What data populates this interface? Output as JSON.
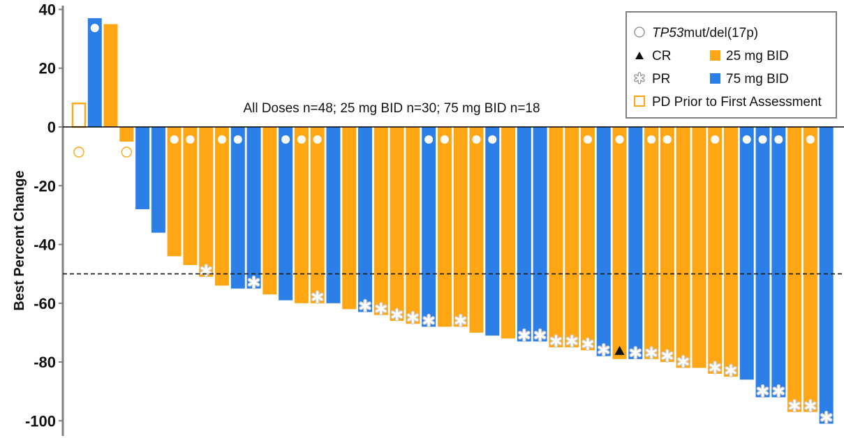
{
  "chart_data": {
    "type": "bar",
    "ylabel": "Best Percent Change",
    "ylim": [
      -102,
      43
    ],
    "yticks": [
      40,
      20,
      0,
      -20,
      -40,
      -60,
      -80,
      -100
    ],
    "ytick_labels": [
      "40",
      "20",
      "0",
      "-20",
      "-40",
      "-60",
      "-80",
      "-100"
    ],
    "threshold": -50,
    "annotation": "All Doses n=48; 25 mg BID n=30; 75 mg BID n=18",
    "colors": {
      "25mg": "#FFA614",
      "75mg": "#2B7FE6",
      "pd": "#FFA614",
      "axis": "#7f7f7f"
    },
    "legend": {
      "position": "top-right",
      "items": [
        {
          "key": "tp53",
          "label_italic": "TP53",
          "label": "mut/del(17p)"
        },
        {
          "key": "cr",
          "label": "CR"
        },
        {
          "key": "25mg",
          "label": "25 mg BID"
        },
        {
          "key": "pr",
          "label": "PR"
        },
        {
          "key": "75mg",
          "label": "75 mg BID"
        },
        {
          "key": "pd",
          "label": "PD Prior to First Assessment"
        }
      ]
    },
    "bars": [
      {
        "value": 8,
        "dose": "pd",
        "tp53": true,
        "resp": ""
      },
      {
        "value": 37,
        "dose": "75mg",
        "tp53": true,
        "resp": ""
      },
      {
        "value": 35,
        "dose": "25mg",
        "tp53": false,
        "resp": ""
      },
      {
        "value": -5,
        "dose": "25mg",
        "tp53": true,
        "resp": ""
      },
      {
        "value": -28,
        "dose": "75mg",
        "tp53": false,
        "resp": ""
      },
      {
        "value": -36,
        "dose": "75mg",
        "tp53": false,
        "resp": ""
      },
      {
        "value": -44,
        "dose": "25mg",
        "tp53": true,
        "resp": ""
      },
      {
        "value": -47,
        "dose": "25mg",
        "tp53": true,
        "resp": ""
      },
      {
        "value": -51,
        "dose": "25mg",
        "tp53": false,
        "resp": "PR"
      },
      {
        "value": -54,
        "dose": "25mg",
        "tp53": true,
        "resp": ""
      },
      {
        "value": -55,
        "dose": "75mg",
        "tp53": true,
        "resp": ""
      },
      {
        "value": -55,
        "dose": "75mg",
        "tp53": false,
        "resp": "PR"
      },
      {
        "value": -57,
        "dose": "25mg",
        "tp53": false,
        "resp": ""
      },
      {
        "value": -59,
        "dose": "75mg",
        "tp53": true,
        "resp": ""
      },
      {
        "value": -60,
        "dose": "25mg",
        "tp53": true,
        "resp": ""
      },
      {
        "value": -60,
        "dose": "25mg",
        "tp53": true,
        "resp": "PR"
      },
      {
        "value": -60,
        "dose": "75mg",
        "tp53": false,
        "resp": ""
      },
      {
        "value": -62,
        "dose": "25mg",
        "tp53": false,
        "resp": ""
      },
      {
        "value": -63,
        "dose": "75mg",
        "tp53": false,
        "resp": "PR"
      },
      {
        "value": -64,
        "dose": "25mg",
        "tp53": false,
        "resp": "PR"
      },
      {
        "value": -66,
        "dose": "25mg",
        "tp53": false,
        "resp": "PR"
      },
      {
        "value": -67,
        "dose": "25mg",
        "tp53": false,
        "resp": "PR"
      },
      {
        "value": -68,
        "dose": "75mg",
        "tp53": true,
        "resp": "PR"
      },
      {
        "value": -68,
        "dose": "25mg",
        "tp53": true,
        "resp": ""
      },
      {
        "value": -68,
        "dose": "25mg",
        "tp53": false,
        "resp": "PR"
      },
      {
        "value": -70,
        "dose": "25mg",
        "tp53": true,
        "resp": ""
      },
      {
        "value": -71,
        "dose": "75mg",
        "tp53": true,
        "resp": ""
      },
      {
        "value": -72,
        "dose": "25mg",
        "tp53": false,
        "resp": ""
      },
      {
        "value": -73,
        "dose": "75mg",
        "tp53": false,
        "resp": "PR"
      },
      {
        "value": -73,
        "dose": "75mg",
        "tp53": false,
        "resp": "PR"
      },
      {
        "value": -75,
        "dose": "25mg",
        "tp53": false,
        "resp": "PR"
      },
      {
        "value": -75,
        "dose": "25mg",
        "tp53": false,
        "resp": "PR"
      },
      {
        "value": -76,
        "dose": "25mg",
        "tp53": true,
        "resp": "PR"
      },
      {
        "value": -78,
        "dose": "75mg",
        "tp53": false,
        "resp": "PR"
      },
      {
        "value": -79,
        "dose": "25mg",
        "tp53": true,
        "resp": "CR"
      },
      {
        "value": -79,
        "dose": "75mg",
        "tp53": false,
        "resp": "PR"
      },
      {
        "value": -79,
        "dose": "25mg",
        "tp53": true,
        "resp": "PR"
      },
      {
        "value": -80,
        "dose": "25mg",
        "tp53": true,
        "resp": "PR"
      },
      {
        "value": -82,
        "dose": "25mg",
        "tp53": false,
        "resp": "PR"
      },
      {
        "value": -82,
        "dose": "25mg",
        "tp53": false,
        "resp": ""
      },
      {
        "value": -84,
        "dose": "25mg",
        "tp53": true,
        "resp": "PR"
      },
      {
        "value": -85,
        "dose": "25mg",
        "tp53": false,
        "resp": "PR"
      },
      {
        "value": -86,
        "dose": "75mg",
        "tp53": true,
        "resp": ""
      },
      {
        "value": -92,
        "dose": "75mg",
        "tp53": true,
        "resp": "PR"
      },
      {
        "value": -92,
        "dose": "75mg",
        "tp53": true,
        "resp": "PR"
      },
      {
        "value": -97,
        "dose": "25mg",
        "tp53": false,
        "resp": "PR"
      },
      {
        "value": -97,
        "dose": "25mg",
        "tp53": true,
        "resp": "PR"
      },
      {
        "value": -101,
        "dose": "75mg",
        "tp53": false,
        "resp": "PR"
      }
    ]
  }
}
